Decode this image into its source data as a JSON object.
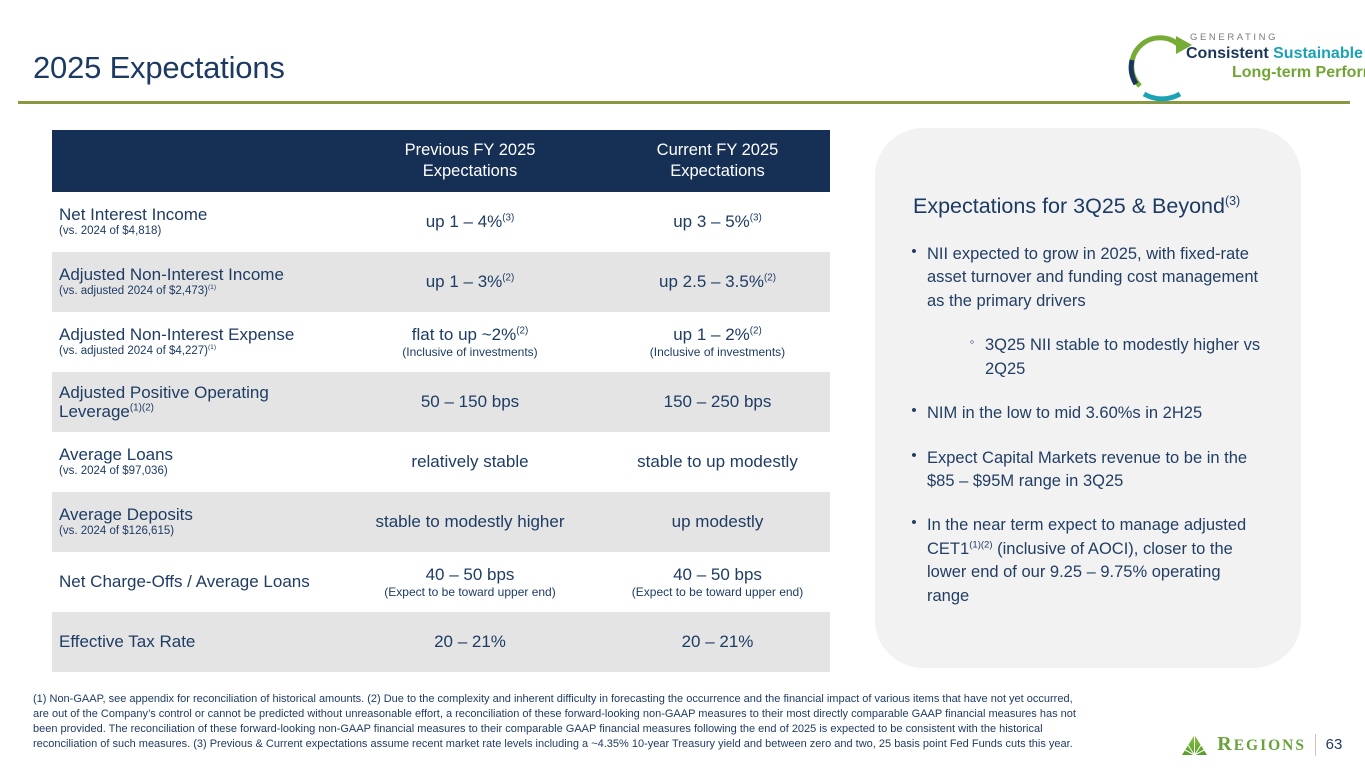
{
  "slide": {
    "title": "2025 Expectations",
    "page_number": "63",
    "brand": "Regions"
  },
  "colors": {
    "navy": "#1e3c64",
    "header_bg": "#152f55",
    "shaded_row": "#e4e4e4",
    "panel_bg": "#f2f2f2",
    "accent_rule": "#8a9740",
    "teal": "#1ba3b5",
    "green": "#71a635",
    "brand_green": "#67a23a"
  },
  "tagline": {
    "line1": "GENERATING",
    "line2_part1": "Consistent",
    "line2_part2": "Sustainable",
    "line3": "Long-term Performance"
  },
  "table": {
    "header_prev": "Previous FY 2025\nExpectations",
    "header_curr": "Current FY 2025\nExpectations",
    "rows": [
      {
        "label": "Net Interest Income",
        "sub": "(vs. 2024 of $4,818)",
        "prev": "up 1 – 4%^{(3)}",
        "prev_note": "",
        "curr": "up 3 – 5%^{(3)}",
        "curr_note": "",
        "shaded": false
      },
      {
        "label": "Adjusted Non-Interest Income",
        "sub": "(vs. adjusted 2024 of $2,473)^{(1)}",
        "prev": "up 1 – 3%^{(2)}",
        "prev_note": "",
        "curr": "up 2.5 – 3.5%^{(2)}",
        "curr_note": "",
        "shaded": true
      },
      {
        "label": "Adjusted Non-Interest Expense",
        "sub": "(vs. adjusted 2024 of $4,227)^{(1)}",
        "prev": "flat to up ~2%^{(2)}",
        "prev_note": "(Inclusive of investments)",
        "curr": "up 1 – 2%^{(2)}",
        "curr_note": "(Inclusive of investments)",
        "shaded": false
      },
      {
        "label": "Adjusted Positive Operating Leverage^{(1)(2)}",
        "sub": "",
        "prev": "50 – 150 bps",
        "prev_note": "",
        "curr": "150 – 250 bps",
        "curr_note": "",
        "shaded": true
      },
      {
        "label": "Average Loans",
        "sub": "(vs. 2024 of $97,036)",
        "prev": "relatively stable",
        "prev_note": "",
        "curr": "stable to up modestly",
        "curr_note": "",
        "shaded": false
      },
      {
        "label": "Average Deposits",
        "sub": "(vs. 2024 of $126,615)",
        "prev": "stable to modestly higher",
        "prev_note": "",
        "curr": "up modestly",
        "curr_note": "",
        "shaded": true
      },
      {
        "label": "Net Charge-Offs / Average Loans",
        "sub": "",
        "prev": "40 – 50 bps",
        "prev_note": "(Expect to be toward upper end)",
        "curr": "40 – 50 bps",
        "curr_note": "(Expect to be toward upper end)",
        "shaded": false
      },
      {
        "label": "Effective Tax Rate",
        "sub": "",
        "prev": "20 – 21%",
        "prev_note": "",
        "curr": "20 – 21%",
        "curr_note": "",
        "shaded": true
      }
    ]
  },
  "panel": {
    "heading": "Expectations for 3Q25 & Beyond^{(3)}",
    "bullets": [
      {
        "level": 1,
        "text": "NII expected to grow in 2025, with fixed-rate asset turnover and funding cost management as the primary drivers"
      },
      {
        "level": 2,
        "text": "3Q25 NII stable to modestly higher vs 2Q25"
      },
      {
        "level": 1,
        "text": "NIM in the  low to mid 3.60%s in 2H25"
      },
      {
        "level": 1,
        "text": "Expect Capital Markets revenue to be in the $85 – $95M range in 3Q25"
      },
      {
        "level": 1,
        "text": "In the near term expect to manage adjusted CET1^{(1)(2)} (inclusive of AOCI), closer to the lower end of our 9.25 – 9.75% operating range"
      }
    ]
  },
  "footnotes": {
    "lines": [
      "(1) Non-GAAP, see appendix for reconciliation of historical amounts. (2) Due to the complexity and inherent difficulty in forecasting the occurrence and the financial impact of various items that have not yet occurred,",
      "are out of the Company’s control or cannot be predicted without unreasonable effort, a reconciliation of these forward-looking non-GAAP measures to their most directly comparable GAAP financial measures has not",
      "been provided. The reconciliation of these forward-looking non-GAAP financial measures to their comparable GAAP financial measures following the end of 2025 is expected to be consistent with the historical",
      "reconciliation of such measures. (3) Previous & Current expectations assume recent market rate levels including a ~4.35% 10-year Treasury yield and between zero and two, 25 basis point Fed Funds cuts this year."
    ]
  }
}
